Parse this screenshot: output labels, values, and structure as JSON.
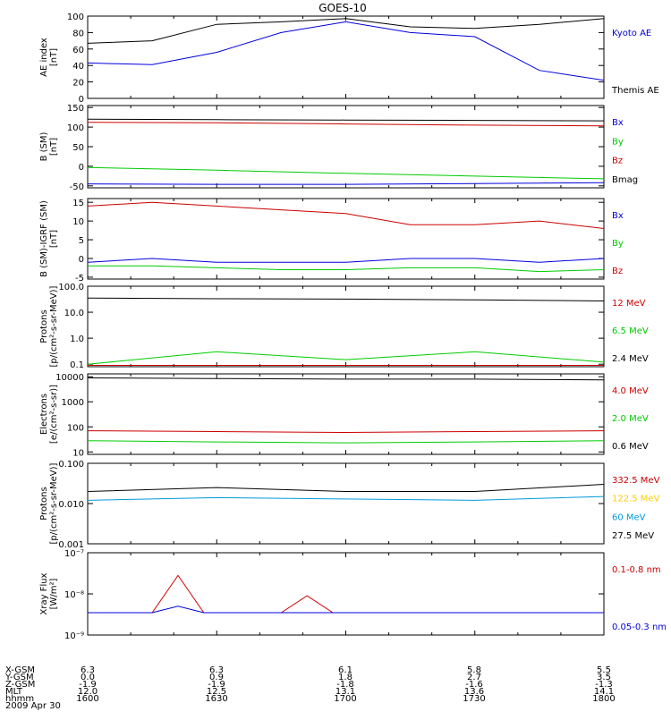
{
  "title": "GOES-10",
  "colors": {
    "black": "#000000",
    "blue": "#0000dd",
    "red": "#cc0000",
    "green": "#00cc00",
    "yellow": "#ffcc00",
    "cyan": "#0099dd"
  },
  "chart_data": [
    {
      "type": "line",
      "id": "ae",
      "ylabel": [
        "AE index",
        "[nT]"
      ],
      "ylim": [
        0,
        100
      ],
      "ticks": [
        0,
        20,
        40,
        60,
        80,
        100
      ],
      "tick_labels": [
        "0",
        "20",
        "40",
        "60",
        "80",
        "100"
      ],
      "x_hours": [
        16.0,
        16.25,
        16.5,
        16.75,
        17.0,
        17.25,
        17.5,
        17.75,
        18.0
      ],
      "series": [
        {
          "name": "Kyoto AE",
          "color": "blue",
          "values": [
            43,
            41,
            56,
            80,
            93,
            80,
            75,
            34,
            22
          ]
        },
        {
          "name": "Themis AE",
          "color": "black",
          "values": [
            67,
            70,
            90,
            93,
            97,
            87,
            85,
            90,
            97
          ]
        }
      ]
    },
    {
      "type": "line",
      "id": "bsm",
      "ylabel": [
        "B (SM)",
        "[nT]"
      ],
      "ylim": [
        -55,
        155
      ],
      "ticks": [
        -50,
        0,
        50,
        100,
        150
      ],
      "tick_labels": [
        "-50",
        "0",
        "50",
        "100",
        "150"
      ],
      "x_hours": [
        16.0,
        16.5,
        17.0,
        17.5,
        18.0
      ],
      "series": [
        {
          "name": "Bx",
          "color": "blue",
          "values": [
            -45,
            -46,
            -46,
            -44,
            -42
          ]
        },
        {
          "name": "By",
          "color": "green",
          "values": [
            -3,
            -10,
            -18,
            -25,
            -32
          ]
        },
        {
          "name": "Bz",
          "color": "red",
          "values": [
            112,
            111,
            108,
            105,
            103
          ]
        },
        {
          "name": "Bmag",
          "color": "black",
          "values": [
            120,
            119,
            118,
            117,
            116
          ]
        }
      ]
    },
    {
      "type": "line",
      "id": "bigrf",
      "ylabel": [
        "B (SM)-IGRF (SM)",
        "[nT]"
      ],
      "ylim": [
        -5.5,
        16
      ],
      "ticks": [
        -5,
        0,
        5,
        10,
        15
      ],
      "tick_labels": [
        "-5",
        "0",
        "5",
        "10",
        "15"
      ],
      "x_hours": [
        16.0,
        16.25,
        16.5,
        16.75,
        17.0,
        17.25,
        17.5,
        17.75,
        18.0
      ],
      "series": [
        {
          "name": "Bx",
          "color": "blue",
          "values": [
            -1,
            0,
            -1,
            -1,
            -1,
            0,
            0,
            -1,
            0
          ]
        },
        {
          "name": "By",
          "color": "green",
          "values": [
            -2,
            -2,
            -2.5,
            -3,
            -3,
            -2.5,
            -2.5,
            -3.5,
            -3
          ]
        },
        {
          "name": "Bz",
          "color": "red",
          "values": [
            14,
            15,
            14,
            13,
            12,
            9,
            9,
            10,
            8
          ]
        }
      ]
    },
    {
      "type": "line",
      "id": "protons1",
      "ylabel": [
        "Protons",
        "[p/(cm²-s-sr-MeV)]"
      ],
      "yscale": "log",
      "ylim": [
        0.08,
        100
      ],
      "ticks": [
        0.1,
        1,
        10,
        100
      ],
      "tick_labels": [
        "0.1",
        "1.0",
        "10.0",
        "100.0"
      ],
      "x_hours": [
        16.0,
        16.5,
        17.0,
        17.5,
        18.0
      ],
      "series": [
        {
          "name": "12 MeV",
          "color": "red",
          "values": [
            0.09,
            0.09,
            0.09,
            0.09,
            0.09
          ]
        },
        {
          "name": "6.5 MeV",
          "color": "green",
          "values": [
            0.1,
            0.3,
            0.15,
            0.3,
            0.12
          ]
        },
        {
          "name": "2.4 MeV",
          "color": "black",
          "values": [
            35,
            33,
            32,
            30,
            27
          ]
        }
      ]
    },
    {
      "type": "line",
      "id": "electrons",
      "ylabel": [
        "Electrons",
        "[e/(cm²-s-sr)]"
      ],
      "yscale": "log",
      "ylim": [
        8,
        13000
      ],
      "ticks": [
        10,
        100,
        1000,
        10000
      ],
      "tick_labels": [
        "10",
        "100",
        "1000",
        "10000"
      ],
      "x_hours": [
        16.0,
        16.5,
        17.0,
        17.5,
        18.0
      ],
      "series": [
        {
          "name": "4.0 MeV",
          "color": "red",
          "values": [
            70,
            65,
            60,
            65,
            70
          ]
        },
        {
          "name": "2.0 MeV",
          "color": "green",
          "values": [
            28,
            25,
            23,
            25,
            28
          ]
        },
        {
          "name": "0.6 MeV",
          "color": "black",
          "values": [
            9000,
            8500,
            8000,
            8000,
            7500
          ]
        }
      ]
    },
    {
      "type": "line",
      "id": "protons2",
      "ylabel": [
        "Protons",
        "[p/(cm²-s-sr-MeV)]"
      ],
      "yscale": "log",
      "ylim": [
        0.001,
        0.1
      ],
      "ticks": [
        0.001,
        0.01,
        0.1
      ],
      "tick_labels": [
        "0.001",
        "0.010",
        "0.100"
      ],
      "x_hours": [
        16.0,
        16.5,
        17.0,
        17.5,
        18.0
      ],
      "series": [
        {
          "name": "332.5 MeV",
          "color": "red",
          "values": []
        },
        {
          "name": "122.5 MeV",
          "color": "yellow",
          "values": []
        },
        {
          "name": "60 MeV",
          "color": "cyan",
          "values": [
            0.012,
            0.014,
            0.013,
            0.012,
            0.015
          ]
        },
        {
          "name": "27.5 MeV",
          "color": "black",
          "values": [
            0.02,
            0.025,
            0.02,
            0.02,
            0.03
          ]
        }
      ]
    },
    {
      "type": "line",
      "id": "xray",
      "ylabel": [
        "Xray Flux",
        "[W/m²]"
      ],
      "yscale": "log",
      "ylim": [
        1e-09,
        1e-07
      ],
      "ticks": [
        1e-09,
        1e-08,
        1e-07
      ],
      "tick_labels": [
        "10⁻⁹",
        "10⁻⁸",
        "10⁻⁷"
      ],
      "x_hours": [
        16.0,
        16.25,
        16.35,
        16.45,
        16.5,
        16.75,
        16.85,
        16.95,
        17.0,
        17.5,
        18.0
      ],
      "series": [
        {
          "name": "0.1-0.8 nm",
          "color": "red",
          "values": [
            3.5e-09,
            3.5e-09,
            2.8e-08,
            3.5e-09,
            3.5e-09,
            3.5e-09,
            9e-09,
            3.5e-09,
            3.5e-09,
            3.5e-09,
            3.5e-09
          ]
        },
        {
          "name": "0.05-0.3 nm",
          "color": "blue",
          "values": [
            3.5e-09,
            3.5e-09,
            5e-09,
            3.5e-09,
            3.5e-09,
            3.5e-09,
            3.5e-09,
            3.5e-09,
            3.5e-09,
            3.5e-09,
            3.5e-09
          ]
        }
      ]
    }
  ],
  "orbit": {
    "row_labels": [
      "X-GSM",
      "Y-GSM",
      "Z-GSM",
      "MLT",
      "hhmm",
      "2009 Apr 30"
    ],
    "columns": [
      [
        "6.3",
        "0.0",
        "-1.9",
        "12.0",
        "1600"
      ],
      [
        "6.3",
        "0.9",
        "-1.9",
        "12.5",
        "1630"
      ],
      [
        "6.1",
        "1.8",
        "-1.8",
        "13.1",
        "1700"
      ],
      [
        "5.8",
        "2.7",
        "-1.6",
        "13.6",
        "1730"
      ],
      [
        "5.5",
        "3.5",
        "-1.3",
        "14.1",
        "1800"
      ]
    ]
  }
}
